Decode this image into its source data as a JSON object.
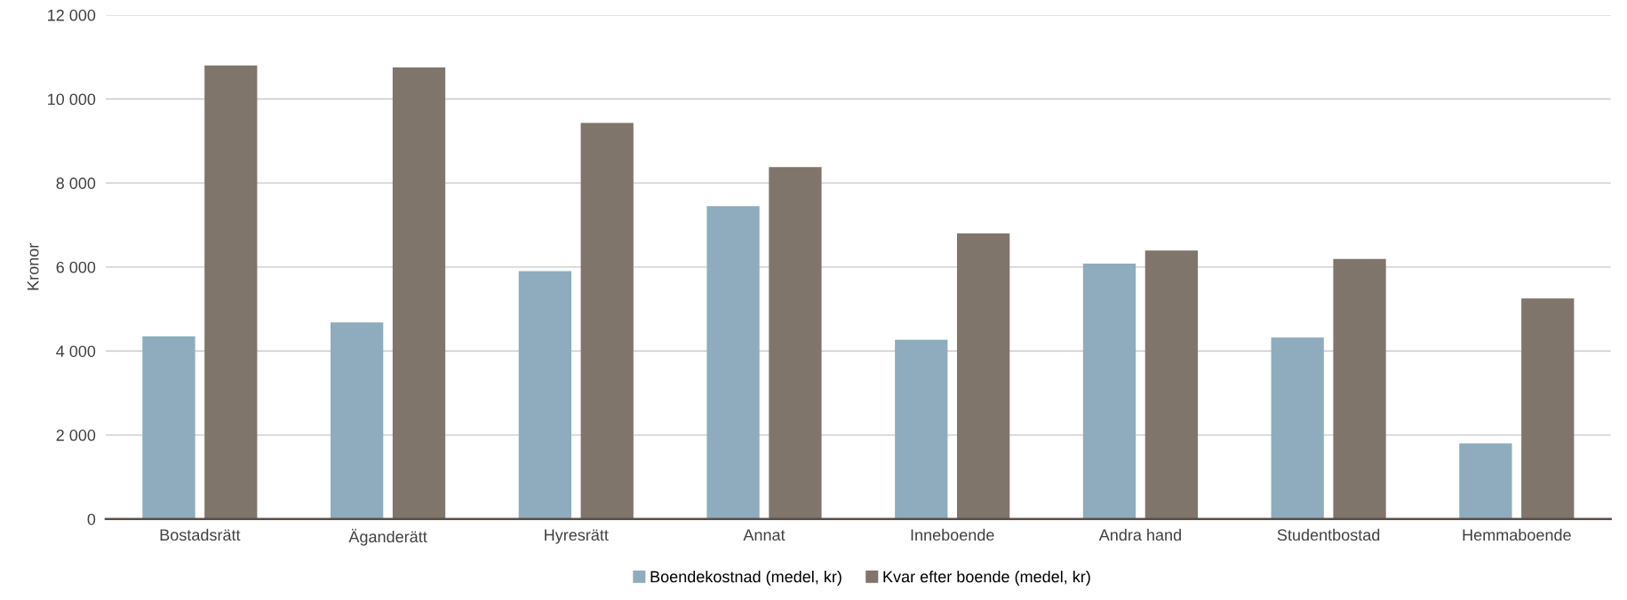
{
  "chart_data": {
    "type": "bar",
    "ylabel": "Kronor",
    "categories": [
      "Bostadsrätt",
      "Äganderätt",
      "Hyresrätt",
      "Annat",
      "Inneboende",
      "Andra hand",
      "Studentbostad",
      "Hemmaboende"
    ],
    "series": [
      {
        "name": "Boendekostnad (medel, kr)",
        "color": "#8eacbd",
        "values": [
          4350,
          4680,
          5900,
          7450,
          4270,
          6080,
          4320,
          1800
        ]
      },
      {
        "name": "Kvar efter boende (medel, kr)",
        "color": "#7f756b",
        "values": [
          10800,
          10750,
          9430,
          8380,
          6800,
          6390,
          6190,
          5250
        ]
      }
    ],
    "ylim": [
      0,
      12000
    ],
    "yticks": [
      {
        "value": 0,
        "label": "0"
      },
      {
        "value": 2000,
        "label": "2 000"
      },
      {
        "value": 4000,
        "label": "4 000"
      },
      {
        "value": 6000,
        "label": "6 000"
      },
      {
        "value": 8000,
        "label": "8 000"
      },
      {
        "value": 10000,
        "label": "10 000"
      },
      {
        "value": 12000,
        "label": "12 000"
      }
    ],
    "grid": "y",
    "legend": "bottom"
  }
}
